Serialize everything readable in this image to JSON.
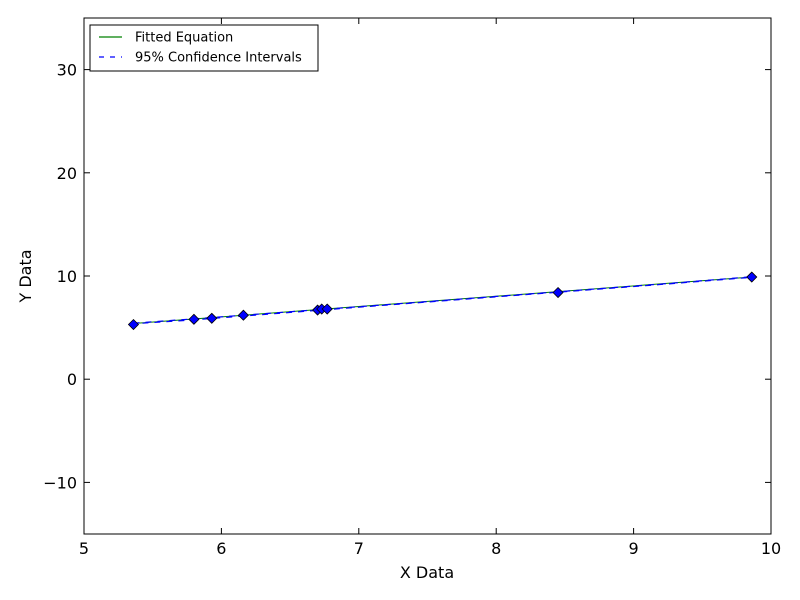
{
  "chart_data": {
    "type": "scatter",
    "xlabel": "X Data",
    "ylabel": "Y Data",
    "xlim": [
      5,
      10
    ],
    "ylim": [
      -15,
      35
    ],
    "xticks": [
      5,
      6,
      7,
      8,
      9,
      10
    ],
    "yticks": [
      -10,
      0,
      10,
      20,
      30
    ],
    "grid": false,
    "legend_position": "top-left",
    "legend": [
      {
        "name": "Fitted Equation",
        "color": "#008000",
        "style": "solid"
      },
      {
        "name": "95% Confidence Intervals",
        "color": "#0000ff",
        "style": "dashed"
      }
    ],
    "points": {
      "color": "#0000ff",
      "marker": "diamond",
      "x": [
        5.36,
        5.8,
        5.93,
        6.16,
        6.7,
        6.73,
        6.77,
        8.45,
        9.86
      ],
      "y": [
        5.3,
        5.8,
        5.9,
        6.2,
        6.7,
        6.8,
        6.8,
        8.4,
        9.9
      ]
    },
    "fitted_line": {
      "color": "#008000",
      "x": [
        5.36,
        9.86
      ],
      "y": [
        5.4,
        9.9
      ]
    },
    "confidence_intervals": {
      "color": "#0000ff",
      "x": [
        5.36,
        5.8,
        6.2,
        6.7,
        7.2,
        7.7,
        8.2,
        8.7,
        9.2,
        9.86
      ],
      "upper": [
        5.43,
        5.85,
        6.24,
        6.73,
        7.22,
        7.72,
        8.22,
        8.72,
        9.22,
        9.93
      ],
      "lower": [
        5.37,
        5.75,
        6.16,
        6.67,
        7.18,
        7.68,
        8.18,
        8.68,
        9.18,
        9.87
      ]
    }
  }
}
